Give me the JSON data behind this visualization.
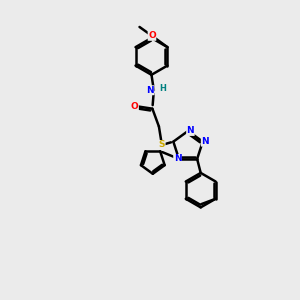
{
  "bg_color": "#ebebeb",
  "atom_colors": {
    "N": "#0000ff",
    "O": "#ff0000",
    "S": "#ccaa00",
    "H": "#008080",
    "C": "#000000"
  },
  "bond_color": "#000000",
  "bond_width": 1.8,
  "fig_width": 3.0,
  "fig_height": 3.0,
  "font_size_atom": 6.5
}
